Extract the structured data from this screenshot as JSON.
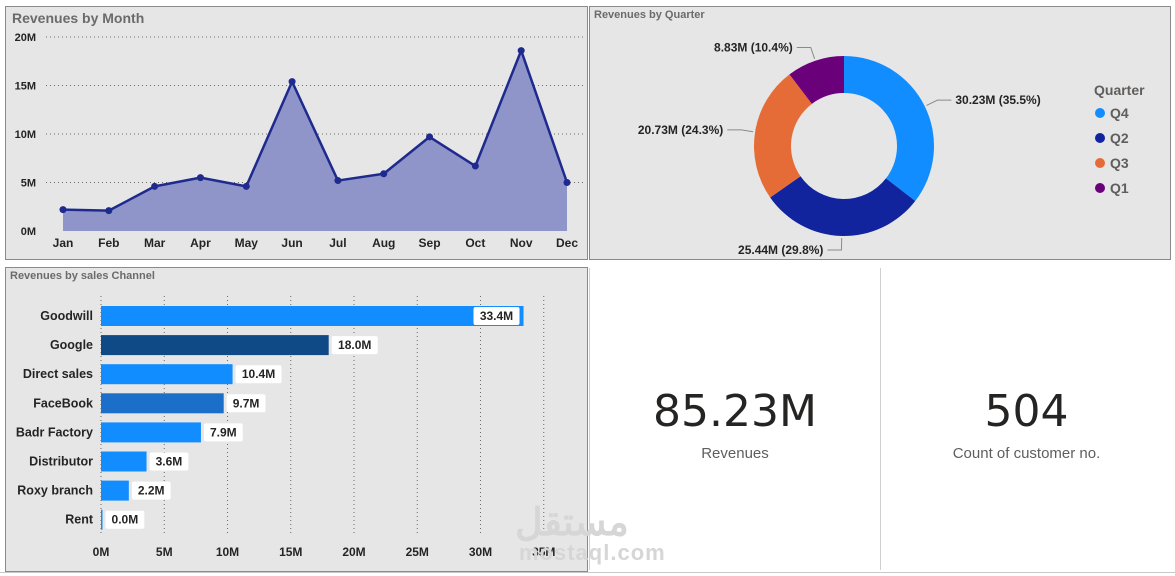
{
  "month_panel": {
    "title": "Revenues by Month"
  },
  "quarter_panel": {
    "title": "Revenues by Quarter",
    "legend_title": "Quarter"
  },
  "channel_panel": {
    "title": "Revenues by sales Channel"
  },
  "kpis": [
    {
      "value": "85.23M",
      "label": "Revenues"
    },
    {
      "value": "504",
      "label": "Count of customer no."
    }
  ],
  "watermark": {
    "arabic": "مستقل",
    "latin": "mostaql.com"
  },
  "chart_data": [
    {
      "type": "area",
      "title": "Revenues by Month",
      "categories": [
        "Jan",
        "Feb",
        "Mar",
        "Apr",
        "May",
        "Jun",
        "Jul",
        "Aug",
        "Sep",
        "Oct",
        "Nov",
        "Dec"
      ],
      "values": [
        2.2,
        2.1,
        4.6,
        5.5,
        4.6,
        15.4,
        5.2,
        5.9,
        9.7,
        6.7,
        18.6,
        5.0
      ],
      "unit": "M",
      "yticks": [
        "0M",
        "5M",
        "10M",
        "15M",
        "20M"
      ],
      "ylim": [
        0,
        20
      ],
      "grid": true,
      "line_color": "#1f2a8f",
      "fill_color": "#8f95c8"
    },
    {
      "type": "donut",
      "title": "Revenues by Quarter",
      "legend_title": "Quarter",
      "legend_position": "right",
      "slices": [
        {
          "name": "Q4",
          "value": 30.23,
          "label": "30.23M (35.5%)",
          "color": "#118dff"
        },
        {
          "name": "Q2",
          "value": 25.44,
          "label": "25.44M (29.8%)",
          "color": "#12239e"
        },
        {
          "name": "Q3",
          "value": 20.73,
          "label": "20.73M (24.3%)",
          "color": "#e66c37"
        },
        {
          "name": "Q1",
          "value": 8.83,
          "label": "8.83M (10.4%)",
          "color": "#6b007b"
        }
      ]
    },
    {
      "type": "bar",
      "orientation": "horizontal",
      "title": "Revenues by sales Channel",
      "categories": [
        "Goodwill",
        "Google",
        "Direct sales",
        "FaceBook",
        "Badr Factory",
        "Distributor",
        "Roxy branch",
        "Rent"
      ],
      "values": [
        33.4,
        18.0,
        10.4,
        9.7,
        7.9,
        3.6,
        2.2,
        0.0
      ],
      "labels": [
        "33.4M",
        "18.0M",
        "10.4M",
        "9.7M",
        "7.9M",
        "3.6M",
        "2.2M",
        "0.0M"
      ],
      "colors": [
        "#118dff",
        "#0f4a86",
        "#118dff",
        "#1c6fc9",
        "#118dff",
        "#118dff",
        "#118dff",
        "#118dff"
      ],
      "xticks": [
        "0M",
        "5M",
        "10M",
        "15M",
        "20M",
        "25M",
        "30M",
        "35M"
      ],
      "xlim": [
        0,
        35
      ],
      "grid": true
    }
  ]
}
